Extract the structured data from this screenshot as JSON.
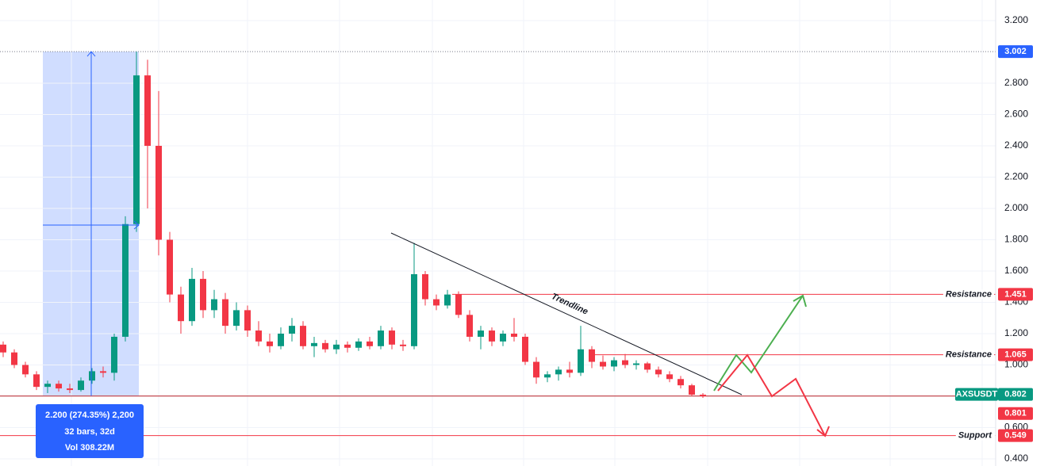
{
  "chart_data": {
    "type": "candlestick",
    "symbol": "AXSUSDT",
    "ylim": [
      0.4,
      3.2
    ],
    "yticks": [
      {
        "value": 3.2,
        "label": "3.200"
      },
      {
        "value": 2.8,
        "label": "2.800"
      },
      {
        "value": 2.6,
        "label": "2.600"
      },
      {
        "value": 2.4,
        "label": "2.400"
      },
      {
        "value": 2.2,
        "label": "2.200"
      },
      {
        "value": 2.0,
        "label": "2.000"
      },
      {
        "value": 1.8,
        "label": "1.800"
      },
      {
        "value": 1.6,
        "label": "1.600"
      },
      {
        "value": 1.4,
        "label": "1.400"
      },
      {
        "value": 1.2,
        "label": "1.200"
      },
      {
        "value": 1.0,
        "label": "1.000"
      },
      {
        "value": 0.6,
        "label": "0.600"
      },
      {
        "value": 0.4,
        "label": "0.400"
      }
    ],
    "grid": true,
    "up_color": "#089981",
    "down_color": "#f23645",
    "open": [
      1.13,
      1.08,
      1.0,
      0.94,
      0.86,
      0.88,
      0.85,
      0.84,
      0.9,
      0.96,
      0.95,
      1.18,
      1.9,
      2.85,
      2.4,
      1.8,
      1.45,
      1.28,
      1.55,
      1.35,
      1.42,
      1.25,
      1.35,
      1.22,
      1.15,
      1.12,
      1.2,
      1.25,
      1.12,
      1.14,
      1.1,
      1.13,
      1.11,
      1.15,
      1.12,
      1.22,
      1.13,
      1.12,
      1.58,
      1.42,
      1.38,
      1.45,
      1.32,
      1.18,
      1.22,
      1.15,
      1.2,
      1.18,
      1.02,
      0.92,
      0.94,
      0.97,
      0.95,
      1.1,
      1.02,
      0.99,
      1.03,
      1.0,
      1.01,
      0.97,
      0.94,
      0.91,
      0.87,
      0.81
    ],
    "high": [
      1.15,
      1.1,
      1.02,
      0.96,
      0.9,
      0.9,
      0.88,
      0.92,
      0.98,
      0.99,
      1.2,
      1.95,
      3.002,
      2.95,
      2.75,
      1.85,
      1.5,
      1.62,
      1.6,
      1.48,
      1.46,
      1.4,
      1.38,
      1.28,
      1.2,
      1.24,
      1.3,
      1.28,
      1.18,
      1.16,
      1.16,
      1.15,
      1.17,
      1.18,
      1.25,
      1.24,
      1.16,
      1.78,
      1.6,
      1.45,
      1.48,
      1.47,
      1.35,
      1.25,
      1.24,
      1.22,
      1.3,
      1.2,
      1.05,
      0.96,
      0.99,
      1.02,
      1.25,
      1.12,
      1.06,
      1.05,
      1.07,
      1.03,
      1.02,
      0.99,
      0.96,
      0.93,
      0.88,
      0.82
    ],
    "low": [
      1.05,
      0.98,
      0.92,
      0.84,
      0.82,
      0.83,
      0.82,
      0.83,
      0.88,
      0.92,
      0.9,
      1.15,
      1.85,
      2.0,
      1.7,
      1.4,
      1.2,
      1.25,
      1.3,
      1.3,
      1.2,
      1.22,
      1.18,
      1.12,
      1.08,
      1.1,
      1.15,
      1.1,
      1.05,
      1.08,
      1.07,
      1.08,
      1.09,
      1.1,
      1.1,
      1.1,
      1.09,
      1.1,
      1.38,
      1.35,
      1.36,
      1.3,
      1.15,
      1.1,
      1.12,
      1.12,
      1.15,
      1.0,
      0.88,
      0.89,
      0.9,
      0.92,
      0.93,
      0.98,
      0.97,
      0.96,
      0.98,
      0.97,
      0.95,
      0.92,
      0.89,
      0.85,
      0.8,
      0.79
    ],
    "close": [
      1.08,
      1.0,
      0.94,
      0.86,
      0.88,
      0.85,
      0.84,
      0.9,
      0.96,
      0.95,
      1.18,
      1.9,
      2.85,
      2.4,
      1.8,
      1.45,
      1.28,
      1.55,
      1.35,
      1.42,
      1.25,
      1.35,
      1.22,
      1.15,
      1.12,
      1.2,
      1.25,
      1.12,
      1.14,
      1.1,
      1.13,
      1.11,
      1.15,
      1.12,
      1.22,
      1.13,
      1.12,
      1.58,
      1.42,
      1.38,
      1.45,
      1.32,
      1.18,
      1.22,
      1.15,
      1.2,
      1.18,
      1.02,
      0.92,
      0.94,
      0.97,
      0.95,
      1.1,
      1.02,
      0.99,
      1.03,
      1.0,
      1.01,
      0.97,
      0.94,
      0.91,
      0.87,
      0.81,
      0.802
    ],
    "levels": [
      {
        "name": "Resistance",
        "value": 1.451,
        "color": "#f23645"
      },
      {
        "name": "Resistance",
        "value": 1.065,
        "color": "#f23645"
      },
      {
        "name": "Support",
        "value": 0.549,
        "color": "#f23645"
      }
    ],
    "price_labels": [
      {
        "value": 3.002,
        "color": "#2962ff"
      },
      {
        "value": 0.802,
        "color": "#089981"
      },
      {
        "value": 0.801,
        "color": "#f23645"
      }
    ],
    "trendline_label": "Trendline",
    "measure": [
      "2.200 (274.35%) 2,200",
      "32 bars, 32d",
      "Vol 308.22M"
    ]
  }
}
